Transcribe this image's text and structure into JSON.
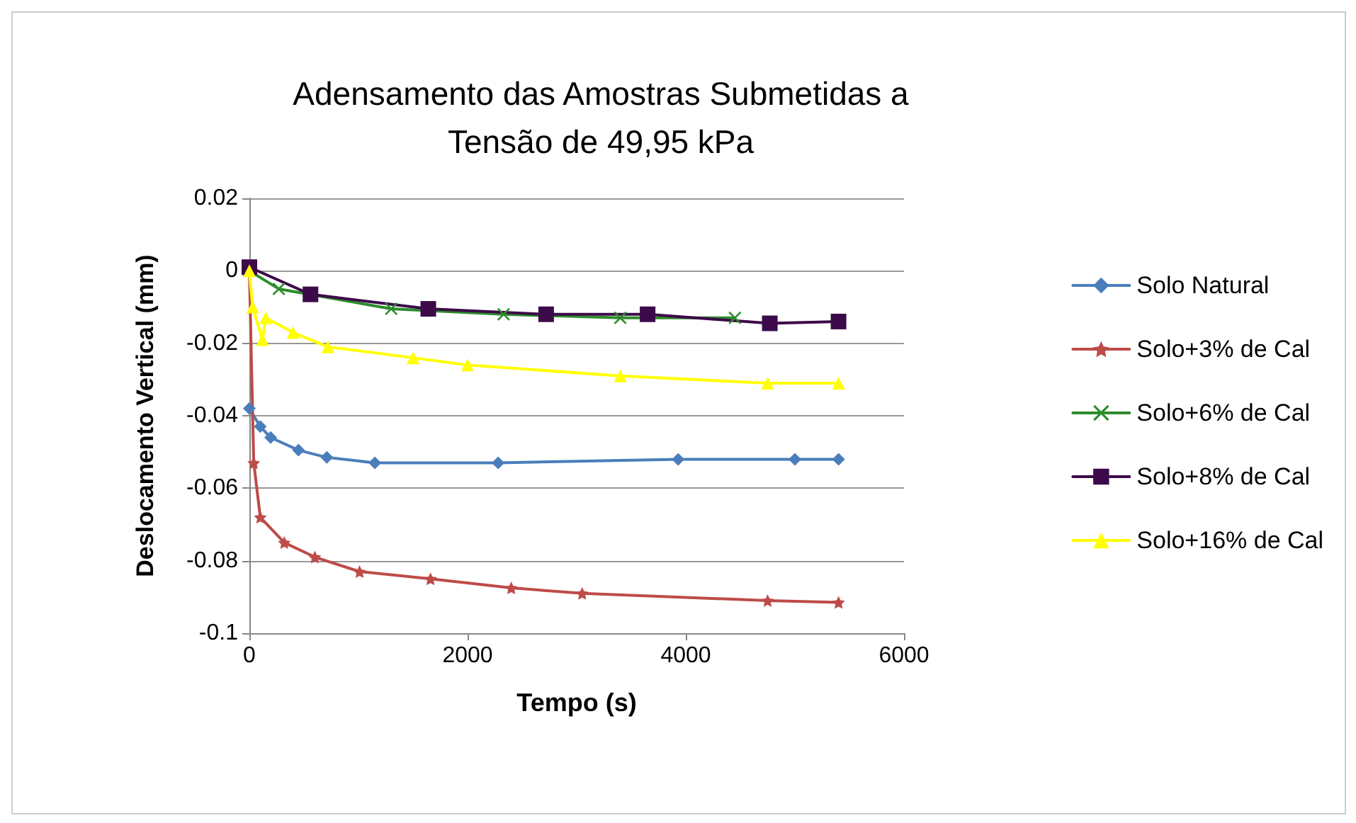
{
  "chart_data": {
    "type": "line",
    "title": "Adensamento das Amostras Submetidas a\nTensão de 49,95 kPa",
    "xlabel": "Tempo (s)",
    "ylabel": "Deslocamento Vertical (mm)",
    "xlim": [
      0,
      6000
    ],
    "xticks": [
      0,
      2000,
      4000,
      6000
    ],
    "ylim": [
      -0.1,
      0.02
    ],
    "yticks": [
      -0.1,
      -0.08,
      -0.06,
      -0.04,
      -0.02,
      0,
      0.02
    ],
    "grid": "y",
    "legend": "right",
    "series": [
      {
        "name": "Solo Natural",
        "color": "#4a7ebb",
        "marker": "diamond",
        "x": [
          0,
          100,
          195,
          450,
          710,
          1150,
          2280,
          3930,
          5000,
          5400
        ],
        "values": [
          -0.038,
          -0.043,
          -0.046,
          -0.0495,
          -0.0515,
          -0.053,
          -0.053,
          -0.052,
          -0.052,
          -0.052
        ]
      },
      {
        "name": "Solo+3% de Cal",
        "color": "#be4b48",
        "marker": "star",
        "x": [
          0,
          40,
          100,
          320,
          600,
          1010,
          1660,
          2400,
          3050,
          4750,
          5400
        ],
        "values": [
          0,
          -0.053,
          -0.068,
          -0.075,
          -0.079,
          -0.083,
          -0.085,
          -0.0875,
          -0.089,
          -0.091,
          -0.0915
        ]
      },
      {
        "name": "Solo+6% de Cal",
        "color": "#2c8c2c",
        "marker": "cross",
        "x": [
          0,
          270,
          1300,
          2330,
          3400,
          4450
        ],
        "values": [
          0,
          -0.005,
          -0.0105,
          -0.012,
          -0.013,
          -0.013
        ]
      },
      {
        "name": "Solo+8% de Cal",
        "color": "#3c0a49",
        "marker": "square",
        "x": [
          0,
          560,
          1640,
          2720,
          3650,
          4770,
          5400
        ],
        "values": [
          0.001,
          -0.0065,
          -0.0105,
          -0.012,
          -0.012,
          -0.0145,
          -0.014
        ]
      },
      {
        "name": "Solo+16% de Cal",
        "color": "#ffff00",
        "marker": "triangle",
        "x": [
          0,
          30,
          120,
          150,
          400,
          720,
          1500,
          2000,
          3400,
          4750,
          5400
        ],
        "values": [
          0,
          -0.01,
          -0.019,
          -0.013,
          -0.017,
          -0.021,
          -0.024,
          -0.026,
          -0.029,
          -0.031,
          -0.031
        ]
      }
    ]
  }
}
